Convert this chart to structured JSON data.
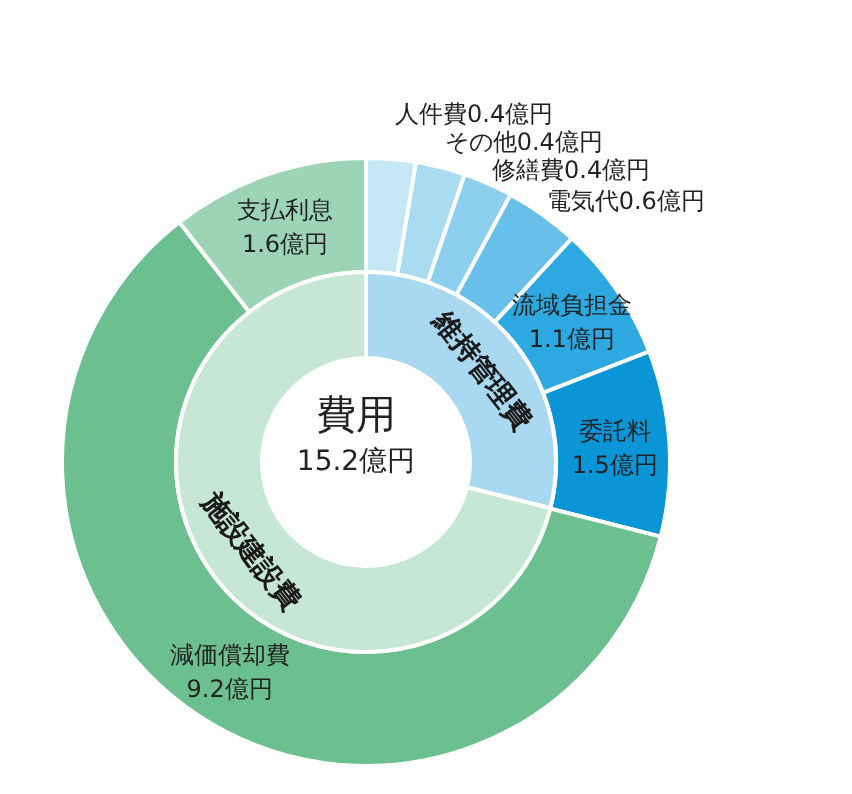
{
  "chart_data": [
    {
      "type": "donut",
      "categories": [
        "人件費",
        "その他",
        "修繕費",
        "電気代",
        "流域負担金",
        "委託料",
        "減価償却費",
        "支払利息"
      ],
      "values": [
        0.4,
        0.4,
        0.4,
        0.6,
        1.1,
        1.5,
        9.2,
        1.6
      ],
      "colors": [
        "#c6e7f6",
        "#a9dbf1",
        "#8ccfee",
        "#68c0ea",
        "#2ea8e0",
        "#0a96d6",
        "#6cbf8e",
        "#9dd4b5"
      ],
      "value_labels": [
        "0.4億円",
        "0.4億円",
        "0.4億円",
        "0.6億円",
        "1.1億円",
        "1.5億円",
        "9.2億円",
        "1.6億円"
      ]
    },
    {
      "type": "donut",
      "title": "費用",
      "subtitle": "15.2億円",
      "categories": [
        "維持管理費",
        "施設建設費"
      ],
      "values": [
        28.9,
        71.1
      ],
      "colors": [
        "#a9d9f0",
        "#c6e7d4"
      ]
    }
  ]
}
